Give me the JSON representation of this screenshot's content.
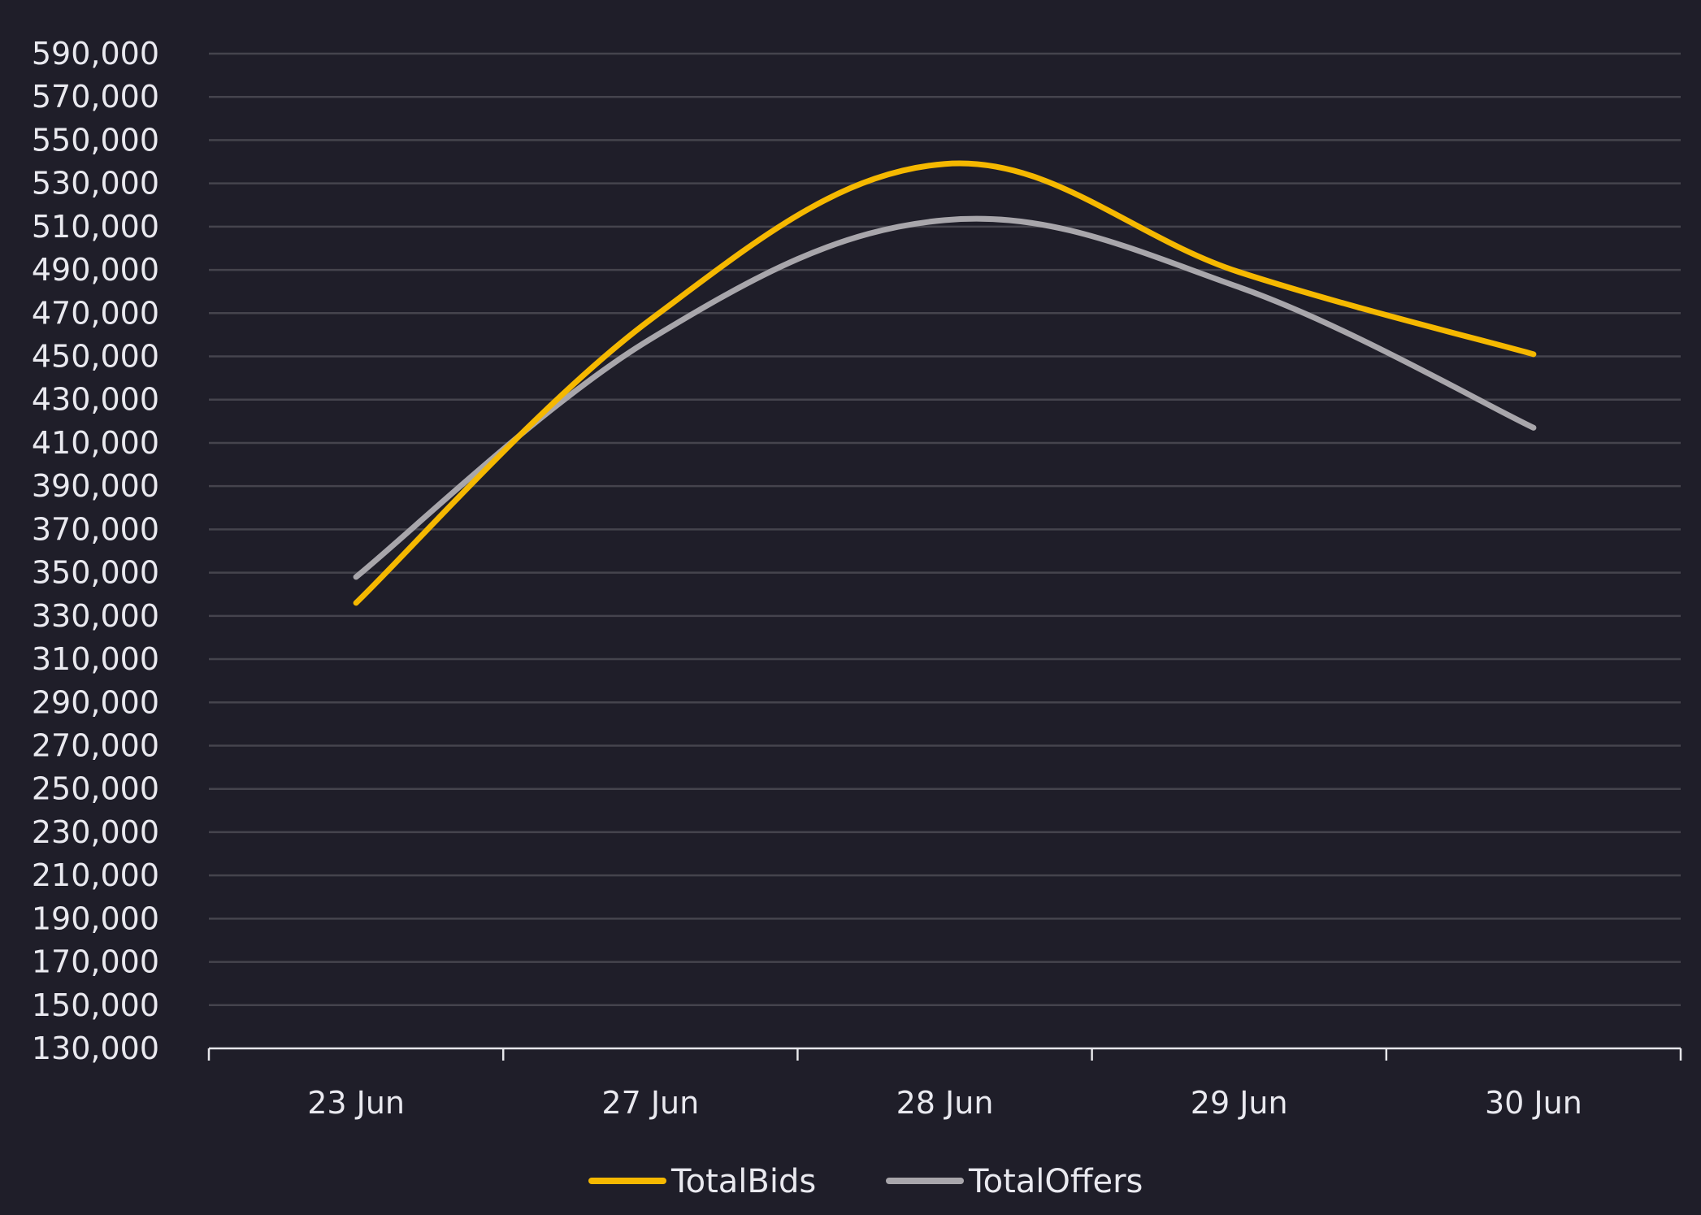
{
  "chart_data": {
    "type": "line",
    "title": "",
    "xlabel": "",
    "ylabel": "",
    "categories": [
      "23 Jun",
      "27 Jun",
      "28 Jun",
      "29 Jun",
      "30 Jun"
    ],
    "ylim": [
      130000,
      590000
    ],
    "yticks": [
      "590,000",
      "570,000",
      "550,000",
      "530,000",
      "510,000",
      "490,000",
      "470,000",
      "450,000",
      "430,000",
      "410,000",
      "390,000",
      "370,000",
      "350,000",
      "330,000",
      "310,000",
      "290,000",
      "270,000",
      "250,000",
      "230,000",
      "210,000",
      "190,000",
      "170,000",
      "150,000",
      "130,000"
    ],
    "grid": true,
    "legend_position": "bottom-center",
    "smooth": true,
    "series": [
      {
        "name": "TotalBids",
        "color": "#f5b800",
        "values": [
          336000,
          467000,
          539000,
          489000,
          451000
        ]
      },
      {
        "name": "TotalOffers",
        "color": "#a8a6ab",
        "values": [
          348000,
          458000,
          513000,
          482000,
          417000
        ]
      }
    ]
  }
}
